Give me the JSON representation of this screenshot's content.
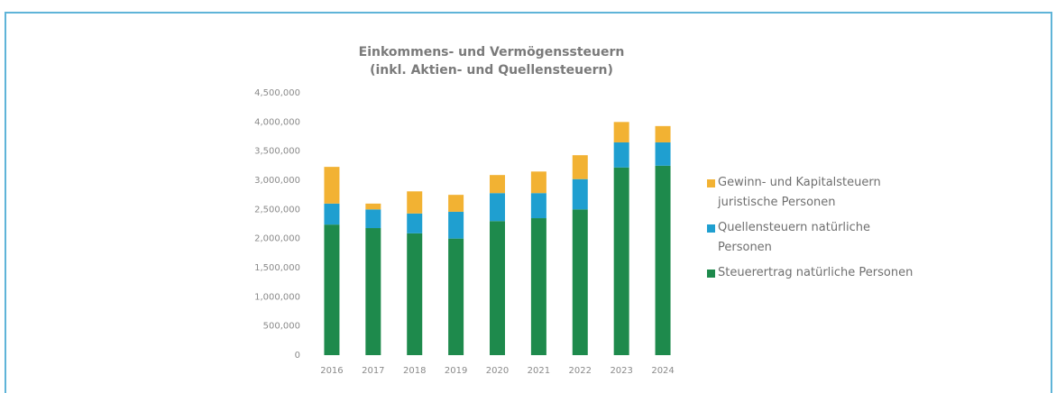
{
  "chart_data": {
    "type": "stacked_bar",
    "title": "Einkommens- und Vermögenssteuern",
    "subtitle": "(inkl. Aktien- und Quellensteuern)",
    "categories": [
      "2016",
      "2017",
      "2018",
      "2019",
      "2020",
      "2021",
      "2022",
      "2023",
      "2024"
    ],
    "series": [
      {
        "name": "Steuerertrag natürliche Personen",
        "color": "#1e8a4c",
        "values": [
          2240000,
          2180000,
          2090000,
          2000000,
          2300000,
          2350000,
          2500000,
          3220000,
          3250000
        ]
      },
      {
        "name": "Quellensteuern natürliche Personen",
        "color": "#1f9fd0",
        "values": [
          360000,
          320000,
          340000,
          460000,
          480000,
          430000,
          520000,
          430000,
          400000
        ]
      },
      {
        "name": "Gewinn- und Kapitalsteuern juristische Personen",
        "color": "#f2b233",
        "values": [
          630000,
          100000,
          380000,
          290000,
          310000,
          370000,
          410000,
          350000,
          280000
        ]
      }
    ],
    "ylim": [
      0,
      4500000
    ],
    "yticks": [
      0,
      {
        "value": 500000,
        "label": "500,000"
      },
      {
        "value": 1000000,
        "label": "1,000,000"
      },
      {
        "value": 1500000,
        "label": "1,500,000"
      },
      {
        "value": 2000000,
        "label": "2,000,000"
      },
      {
        "value": 2500000,
        "label": "2,500,000"
      },
      {
        "value": 3000000,
        "label": "3,000,000"
      },
      {
        "value": 3500000,
        "label": "3,500,000"
      },
      {
        "value": 4000000,
        "label": "4,000,000"
      },
      {
        "value": 4500000,
        "label": "4,500,000"
      }
    ],
    "legend": "right"
  }
}
